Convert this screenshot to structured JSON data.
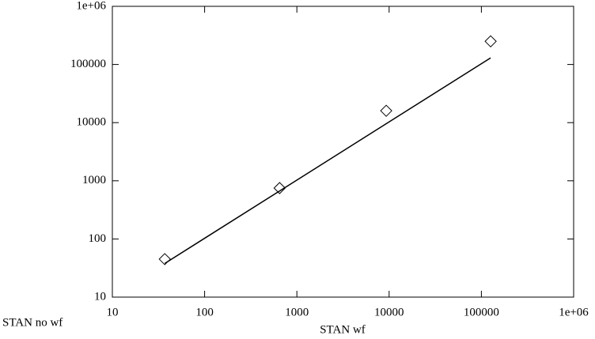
{
  "chart_data": {
    "type": "scatter",
    "x_label": "STAN wf",
    "y_label": "STAN no wf",
    "log_x": true,
    "log_y": true,
    "xlim": [
      10,
      1000000
    ],
    "ylim": [
      10,
      1000000
    ],
    "xticks": [
      10,
      100,
      1000,
      10000,
      100000,
      {
        "value": 1000000,
        "label": "1e+06"
      }
    ],
    "yticks": [
      10,
      100,
      1000,
      10000,
      100000,
      {
        "value": 1000000,
        "label": "1e+06"
      }
    ],
    "series": [
      {
        "mode": "markers",
        "marker": "diamond",
        "color": "#000000",
        "x": [
          37,
          650,
          9300,
          126000
        ],
        "values": [
          45,
          750,
          16000,
          250000
        ]
      },
      {
        "mode": "line",
        "color": "#000000",
        "x": [
          37,
          126000
        ],
        "values": [
          38,
          130000
        ]
      }
    ]
  }
}
